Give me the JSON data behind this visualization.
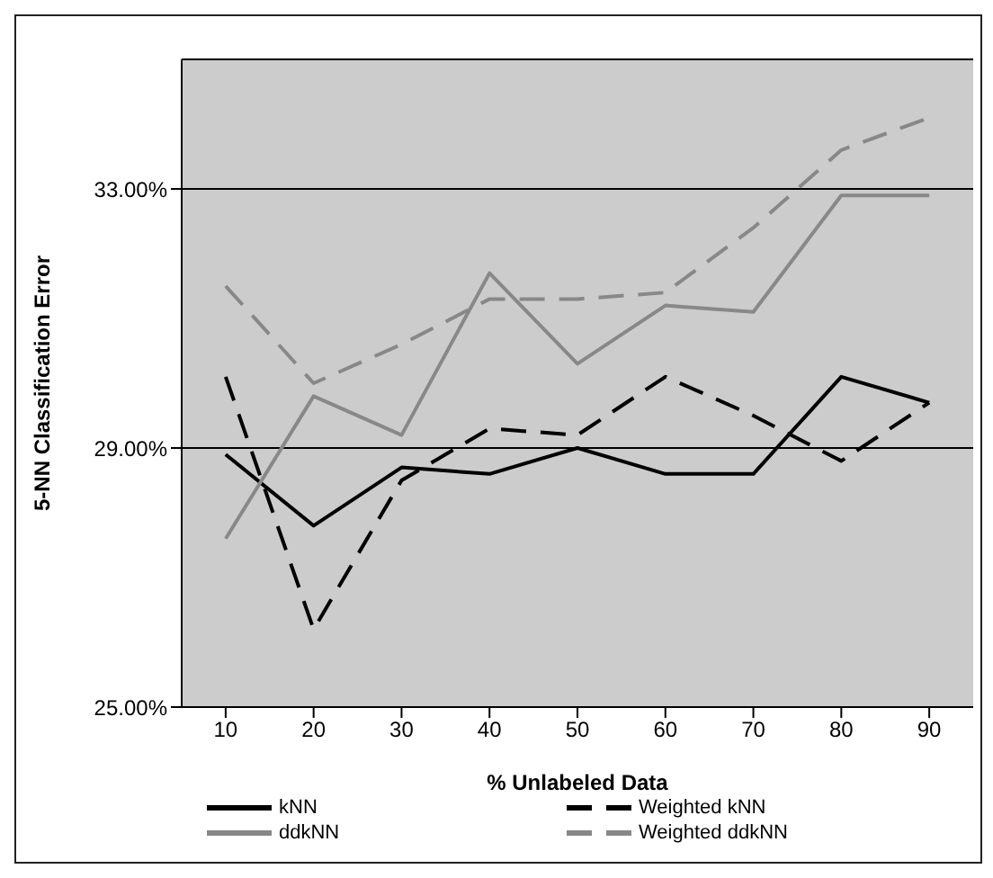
{
  "chart_data": {
    "type": "line",
    "xlabel": "% Unlabeled Data",
    "ylabel": "5-NN Classification Error",
    "categories": [
      "10",
      "20",
      "30",
      "40",
      "50",
      "60",
      "70",
      "80",
      "90"
    ],
    "series": [
      {
        "name": "kNN",
        "color": "#000000",
        "line_style": "solid",
        "values": [
          28.9,
          27.8,
          28.7,
          28.6,
          29.0,
          28.6,
          28.6,
          30.1,
          29.7
        ]
      },
      {
        "name": "Weighted kNN",
        "color": "#000000",
        "line_style": "dashed",
        "values": [
          30.1,
          26.2,
          28.5,
          29.3,
          29.2,
          30.1,
          29.5,
          28.8,
          29.7
        ]
      },
      {
        "name": "ddkNN",
        "color": "#888888",
        "line_style": "solid",
        "values": [
          27.6,
          29.8,
          29.2,
          31.7,
          30.3,
          31.2,
          31.1,
          32.9,
          32.9
        ]
      },
      {
        "name": "Weighted ddkNN",
        "color": "#888888",
        "line_style": "dashed",
        "values": [
          31.5,
          30.0,
          30.6,
          31.3,
          31.3,
          31.4,
          32.4,
          33.6,
          34.1
        ]
      }
    ],
    "ylim": [
      25,
      35
    ],
    "yticks": [
      {
        "value": 25,
        "label": "25.00%"
      },
      {
        "value": 29,
        "label": "29.00%"
      },
      {
        "value": 33,
        "label": "33.00%"
      }
    ],
    "grid": "y",
    "legend": "bottom",
    "marker": "none"
  }
}
